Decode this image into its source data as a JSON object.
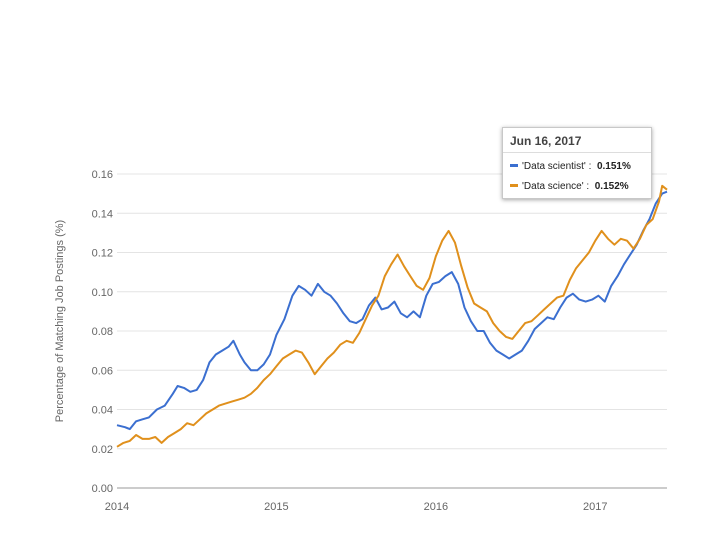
{
  "chart_data": {
    "type": "line",
    "title": "",
    "xlabel": "",
    "ylabel": "Percentage of Matching Job Postings (%)",
    "xlim": [
      2014.0,
      2017.45
    ],
    "ylim": [
      0,
      0.16
    ],
    "x_ticks": [
      "2014",
      "2015",
      "2016",
      "2017"
    ],
    "y_ticks": [
      "0.00",
      "0.02",
      "0.04",
      "0.06",
      "0.08",
      "0.10",
      "0.12",
      "0.14",
      "0.16"
    ],
    "grid": true,
    "series": [
      {
        "name": "'Data scientist'",
        "color": "#3b6fd0",
        "points": [
          [
            2014.0,
            0.032
          ],
          [
            2014.05,
            0.031
          ],
          [
            2014.08,
            0.03
          ],
          [
            2014.12,
            0.034
          ],
          [
            2014.16,
            0.035
          ],
          [
            2014.2,
            0.036
          ],
          [
            2014.25,
            0.04
          ],
          [
            2014.3,
            0.042
          ],
          [
            2014.35,
            0.048
          ],
          [
            2014.38,
            0.052
          ],
          [
            2014.42,
            0.051
          ],
          [
            2014.46,
            0.049
          ],
          [
            2014.5,
            0.05
          ],
          [
            2014.54,
            0.055
          ],
          [
            2014.58,
            0.064
          ],
          [
            2014.62,
            0.068
          ],
          [
            2014.66,
            0.07
          ],
          [
            2014.7,
            0.072
          ],
          [
            2014.73,
            0.075
          ],
          [
            2014.77,
            0.068
          ],
          [
            2014.8,
            0.064
          ],
          [
            2014.84,
            0.06
          ],
          [
            2014.88,
            0.06
          ],
          [
            2014.92,
            0.063
          ],
          [
            2014.96,
            0.068
          ],
          [
            2015.0,
            0.078
          ],
          [
            2015.05,
            0.086
          ],
          [
            2015.1,
            0.098
          ],
          [
            2015.14,
            0.103
          ],
          [
            2015.18,
            0.101
          ],
          [
            2015.22,
            0.098
          ],
          [
            2015.26,
            0.104
          ],
          [
            2015.3,
            0.1
          ],
          [
            2015.34,
            0.098
          ],
          [
            2015.38,
            0.094
          ],
          [
            2015.42,
            0.089
          ],
          [
            2015.46,
            0.085
          ],
          [
            2015.5,
            0.084
          ],
          [
            2015.54,
            0.086
          ],
          [
            2015.58,
            0.093
          ],
          [
            2015.62,
            0.097
          ],
          [
            2015.66,
            0.091
          ],
          [
            2015.7,
            0.092
          ],
          [
            2015.74,
            0.095
          ],
          [
            2015.78,
            0.089
          ],
          [
            2015.82,
            0.087
          ],
          [
            2015.86,
            0.09
          ],
          [
            2015.9,
            0.087
          ],
          [
            2015.94,
            0.098
          ],
          [
            2015.98,
            0.104
          ],
          [
            2016.02,
            0.105
          ],
          [
            2016.06,
            0.108
          ],
          [
            2016.1,
            0.11
          ],
          [
            2016.14,
            0.104
          ],
          [
            2016.18,
            0.092
          ],
          [
            2016.22,
            0.085
          ],
          [
            2016.26,
            0.08
          ],
          [
            2016.3,
            0.08
          ],
          [
            2016.34,
            0.074
          ],
          [
            2016.38,
            0.07
          ],
          [
            2016.42,
            0.068
          ],
          [
            2016.46,
            0.066
          ],
          [
            2016.5,
            0.068
          ],
          [
            2016.54,
            0.07
          ],
          [
            2016.58,
            0.075
          ],
          [
            2016.62,
            0.081
          ],
          [
            2016.66,
            0.084
          ],
          [
            2016.7,
            0.087
          ],
          [
            2016.74,
            0.086
          ],
          [
            2016.78,
            0.092
          ],
          [
            2016.82,
            0.097
          ],
          [
            2016.86,
            0.099
          ],
          [
            2016.9,
            0.096
          ],
          [
            2016.94,
            0.095
          ],
          [
            2016.98,
            0.096
          ],
          [
            2017.02,
            0.098
          ],
          [
            2017.06,
            0.095
          ],
          [
            2017.1,
            0.103
          ],
          [
            2017.14,
            0.108
          ],
          [
            2017.18,
            0.114
          ],
          [
            2017.22,
            0.119
          ],
          [
            2017.26,
            0.124
          ],
          [
            2017.3,
            0.131
          ],
          [
            2017.34,
            0.137
          ],
          [
            2017.38,
            0.145
          ],
          [
            2017.42,
            0.15
          ],
          [
            2017.45,
            0.151
          ]
        ]
      },
      {
        "name": "'Data science'",
        "color": "#e0901c",
        "points": [
          [
            2014.0,
            0.021
          ],
          [
            2014.04,
            0.023
          ],
          [
            2014.08,
            0.024
          ],
          [
            2014.12,
            0.027
          ],
          [
            2014.16,
            0.025
          ],
          [
            2014.2,
            0.025
          ],
          [
            2014.24,
            0.026
          ],
          [
            2014.28,
            0.023
          ],
          [
            2014.32,
            0.026
          ],
          [
            2014.36,
            0.028
          ],
          [
            2014.4,
            0.03
          ],
          [
            2014.44,
            0.033
          ],
          [
            2014.48,
            0.032
          ],
          [
            2014.52,
            0.035
          ],
          [
            2014.56,
            0.038
          ],
          [
            2014.6,
            0.04
          ],
          [
            2014.64,
            0.042
          ],
          [
            2014.68,
            0.043
          ],
          [
            2014.72,
            0.044
          ],
          [
            2014.76,
            0.045
          ],
          [
            2014.8,
            0.046
          ],
          [
            2014.84,
            0.048
          ],
          [
            2014.88,
            0.051
          ],
          [
            2014.92,
            0.055
          ],
          [
            2014.96,
            0.058
          ],
          [
            2015.0,
            0.062
          ],
          [
            2015.04,
            0.066
          ],
          [
            2015.08,
            0.068
          ],
          [
            2015.12,
            0.07
          ],
          [
            2015.16,
            0.069
          ],
          [
            2015.2,
            0.064
          ],
          [
            2015.24,
            0.058
          ],
          [
            2015.28,
            0.062
          ],
          [
            2015.32,
            0.066
          ],
          [
            2015.36,
            0.069
          ],
          [
            2015.4,
            0.073
          ],
          [
            2015.44,
            0.075
          ],
          [
            2015.48,
            0.074
          ],
          [
            2015.52,
            0.079
          ],
          [
            2015.56,
            0.086
          ],
          [
            2015.6,
            0.093
          ],
          [
            2015.64,
            0.098
          ],
          [
            2015.68,
            0.108
          ],
          [
            2015.72,
            0.114
          ],
          [
            2015.76,
            0.119
          ],
          [
            2015.8,
            0.113
          ],
          [
            2015.84,
            0.108
          ],
          [
            2015.88,
            0.103
          ],
          [
            2015.92,
            0.101
          ],
          [
            2015.96,
            0.107
          ],
          [
            2016.0,
            0.118
          ],
          [
            2016.04,
            0.126
          ],
          [
            2016.08,
            0.131
          ],
          [
            2016.12,
            0.125
          ],
          [
            2016.16,
            0.113
          ],
          [
            2016.2,
            0.102
          ],
          [
            2016.24,
            0.094
          ],
          [
            2016.28,
            0.092
          ],
          [
            2016.32,
            0.09
          ],
          [
            2016.36,
            0.084
          ],
          [
            2016.4,
            0.08
          ],
          [
            2016.44,
            0.077
          ],
          [
            2016.48,
            0.076
          ],
          [
            2016.52,
            0.08
          ],
          [
            2016.56,
            0.084
          ],
          [
            2016.6,
            0.085
          ],
          [
            2016.64,
            0.088
          ],
          [
            2016.68,
            0.091
          ],
          [
            2016.72,
            0.094
          ],
          [
            2016.76,
            0.097
          ],
          [
            2016.8,
            0.098
          ],
          [
            2016.84,
            0.106
          ],
          [
            2016.88,
            0.112
          ],
          [
            2016.92,
            0.116
          ],
          [
            2016.96,
            0.12
          ],
          [
            2017.0,
            0.126
          ],
          [
            2017.04,
            0.131
          ],
          [
            2017.08,
            0.127
          ],
          [
            2017.12,
            0.124
          ],
          [
            2017.16,
            0.127
          ],
          [
            2017.2,
            0.126
          ],
          [
            2017.24,
            0.122
          ],
          [
            2017.28,
            0.127
          ],
          [
            2017.32,
            0.134
          ],
          [
            2017.36,
            0.137
          ],
          [
            2017.4,
            0.146
          ],
          [
            2017.42,
            0.154
          ],
          [
            2017.45,
            0.152
          ]
        ]
      }
    ]
  },
  "tooltip": {
    "date": "Jun 16, 2017",
    "rows": [
      {
        "label": "'Data scientist' :",
        "value": "0.151%",
        "color": "#3b6fd0"
      },
      {
        "label": "'Data science' :",
        "value": "0.152%",
        "color": "#e0901c"
      }
    ]
  }
}
